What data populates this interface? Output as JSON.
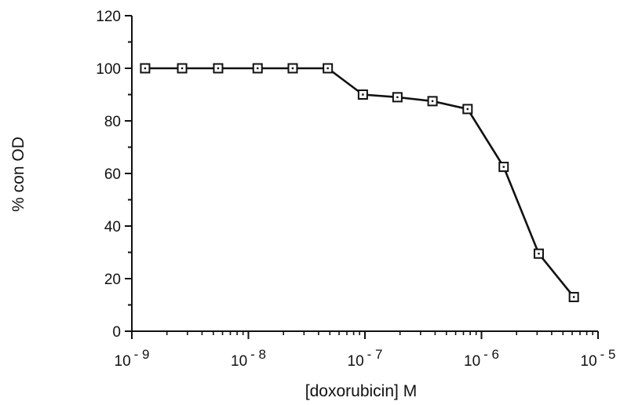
{
  "chart_data": {
    "type": "line",
    "title": "",
    "xlabel": "[doxorubicin]  M",
    "ylabel": "% con OD",
    "x_scale": "log",
    "xlim": [
      1e-09,
      1e-05
    ],
    "ylim": [
      0,
      120
    ],
    "grid": false,
    "x_ticks": [
      {
        "value": 1e-09,
        "base": "10",
        "exp": "- 9"
      },
      {
        "value": 1e-08,
        "base": "10",
        "exp": "- 8"
      },
      {
        "value": 1e-07,
        "base": "10",
        "exp": "- 7"
      },
      {
        "value": 1e-06,
        "base": "10",
        "exp": "- 6"
      },
      {
        "value": 1e-05,
        "base": "10",
        "exp": "- 5"
      }
    ],
    "y_ticks": [
      0,
      20,
      40,
      60,
      80,
      100,
      120
    ],
    "series": [
      {
        "marker": "square",
        "color": "#111111",
        "x": [
          1.3e-09,
          2.7e-09,
          5.5e-09,
          1.2e-08,
          2.4e-08,
          4.8e-08,
          9.6e-08,
          1.9e-07,
          3.8e-07,
          7.6e-07,
          1.55e-06,
          3.1e-06,
          6.2e-06
        ],
        "y": [
          100,
          100,
          100,
          100,
          100,
          100,
          90,
          89,
          87.5,
          84.5,
          62.5,
          29.5,
          13
        ]
      }
    ]
  }
}
